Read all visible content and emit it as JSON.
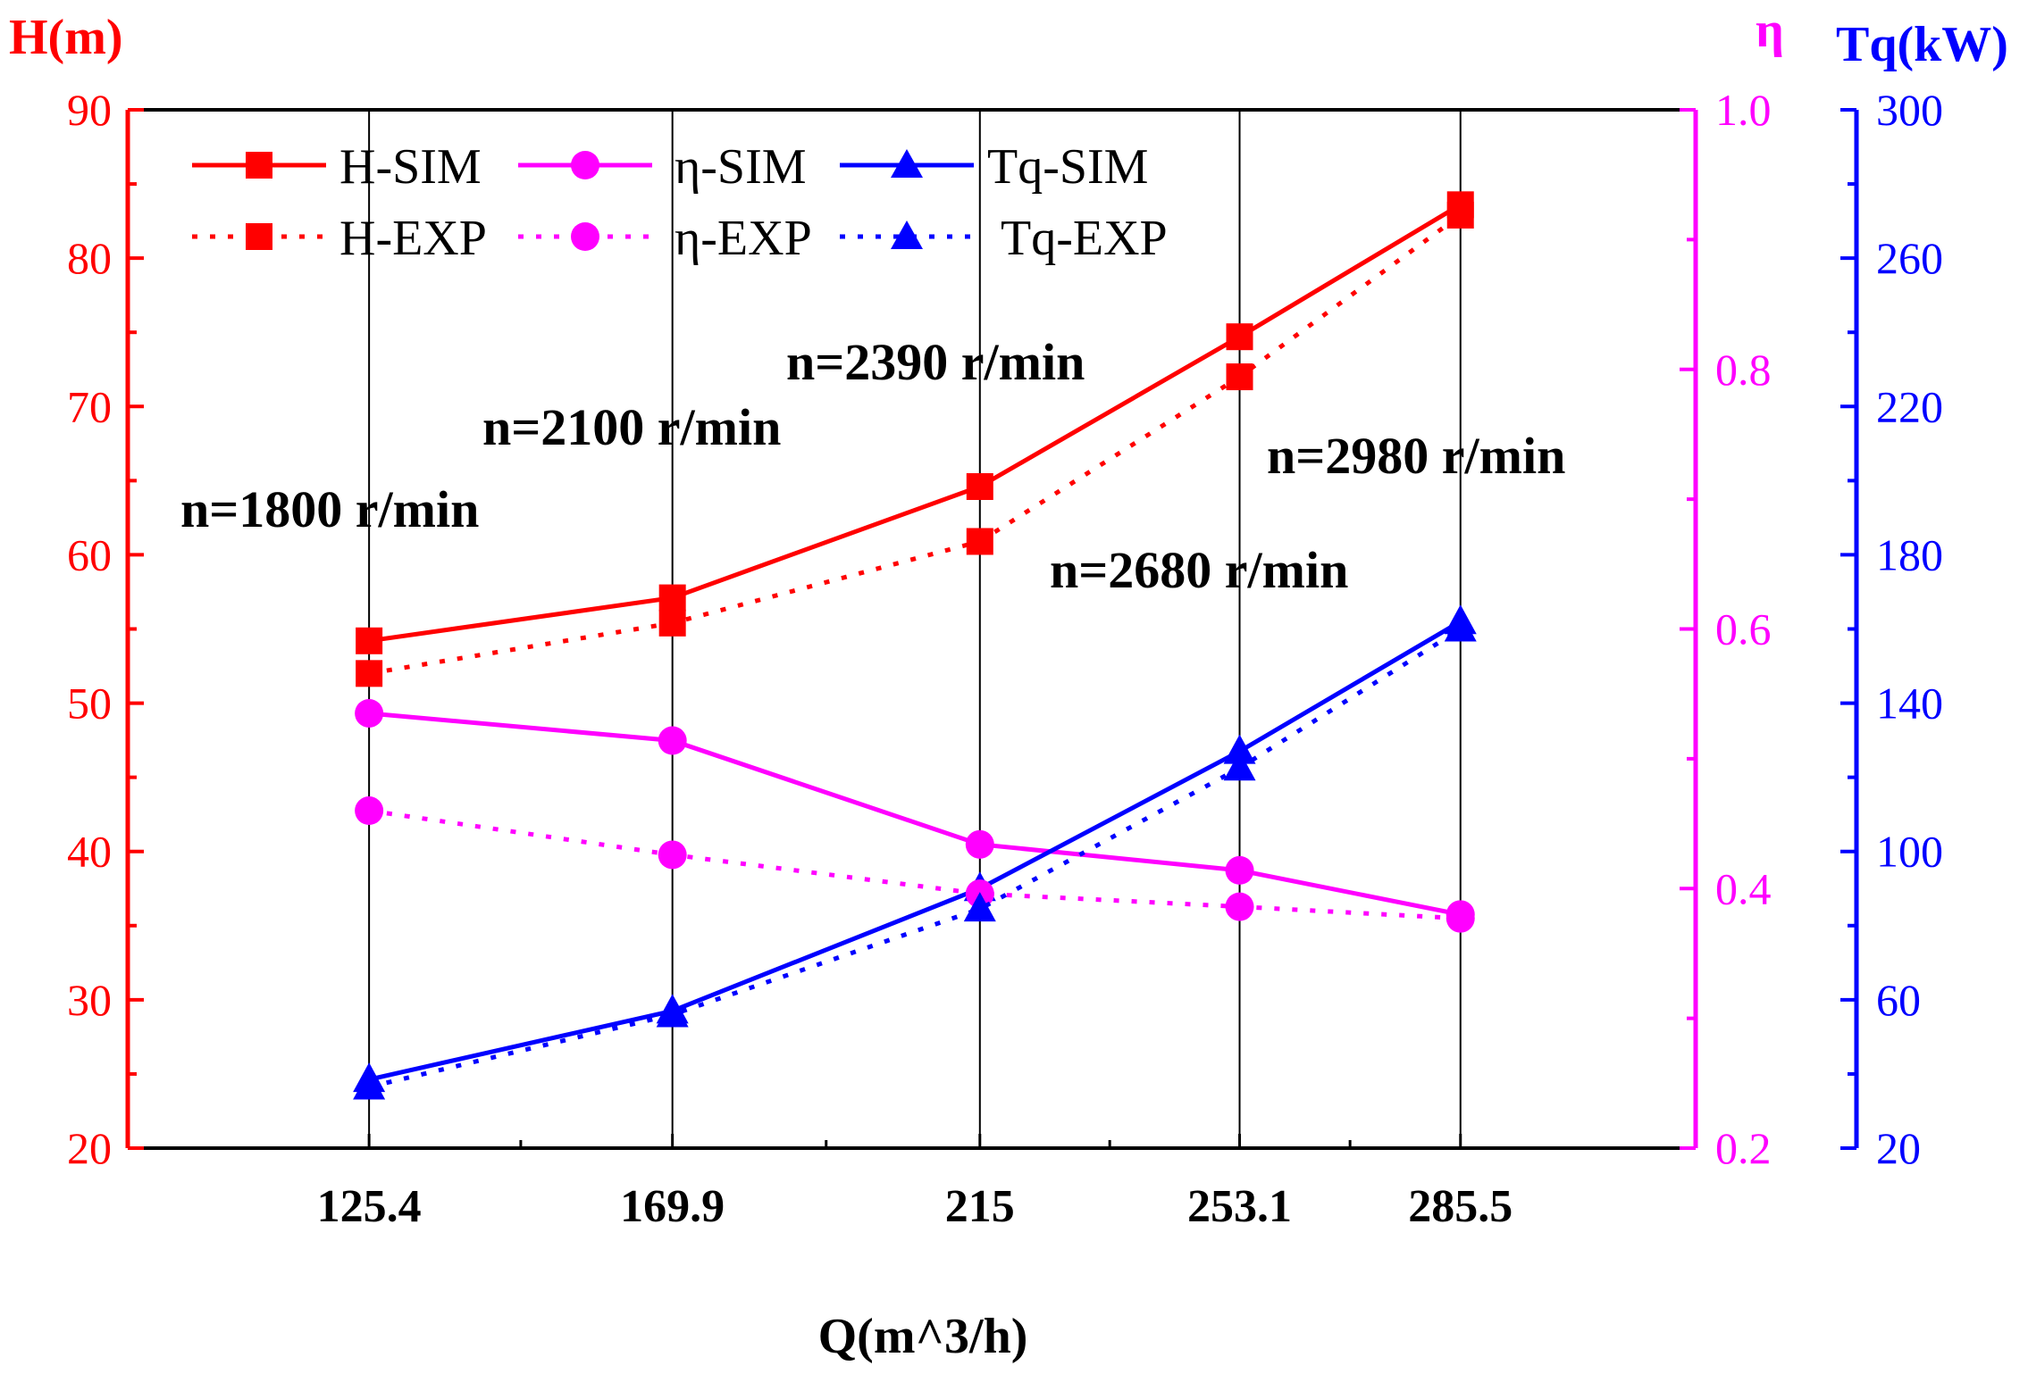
{
  "chart_data": {
    "type": "line",
    "x_axis": {
      "label": "Q(m^3/h)",
      "categories": [
        "125.4",
        "169.9",
        "215",
        "253.1",
        "285.5"
      ],
      "values": [
        125.4,
        169.9,
        215,
        253.1,
        285.5
      ],
      "range": [
        90,
        320
      ]
    },
    "y_axes": {
      "left": {
        "label": "H(m)",
        "range": [
          20,
          90
        ],
        "ticks": [
          20,
          30,
          40,
          50,
          60,
          70,
          80,
          90
        ],
        "color": "#ff0000"
      },
      "right1": {
        "label": "η",
        "range": [
          0.2,
          1.0
        ],
        "ticks": [
          "0.2",
          "0.4",
          "0.6",
          "0.8",
          "1.0"
        ],
        "color": "#ff00ff"
      },
      "right2": {
        "label": "Tq(kW)",
        "range": [
          20,
          300
        ],
        "ticks": [
          20,
          60,
          100,
          140,
          180,
          220,
          260,
          300
        ],
        "color": "#0000ff"
      }
    },
    "series": [
      {
        "name": "H-SIM",
        "axis": "left",
        "color": "#ff0000",
        "style": "solid",
        "marker": "square",
        "values": [
          54.2,
          57.1,
          64.6,
          74.7,
          83.6
        ]
      },
      {
        "name": "η-SIM",
        "axis": "right1",
        "color": "#ff00ff",
        "style": "solid",
        "marker": "circle",
        "values": [
          0.535,
          0.514,
          0.434,
          0.414,
          0.38
        ]
      },
      {
        "name": "Tq-SIM",
        "axis": "right2",
        "color": "#0000ff",
        "style": "solid",
        "marker": "triangle",
        "values": [
          38.5,
          57.0,
          90.0,
          127.0,
          162.0
        ]
      },
      {
        "name": "H-EXP",
        "axis": "left",
        "color": "#ff0000",
        "style": "dotted",
        "marker": "square",
        "values": [
          52.0,
          55.4,
          60.9,
          72.0,
          82.9
        ]
      },
      {
        "name": "η-EXP",
        "axis": "right1",
        "color": "#ff00ff",
        "style": "dotted",
        "marker": "circle",
        "values": [
          0.46,
          0.426,
          0.396,
          0.386,
          0.377
        ]
      },
      {
        "name": "Tq-EXP",
        "axis": "right2",
        "color": "#0000ff",
        "style": "dotted",
        "marker": "triangle",
        "values": [
          36.5,
          56.0,
          84.5,
          122.5,
          160.0
        ]
      }
    ],
    "annotations": [
      "n=1800 r/min",
      "n=2100 r/min",
      "n=2390 r/min",
      "n=2680 r/min",
      "n=2980 r/min"
    ],
    "vertical_gridlines_at_categories": true,
    "legend_position": "top-left"
  }
}
